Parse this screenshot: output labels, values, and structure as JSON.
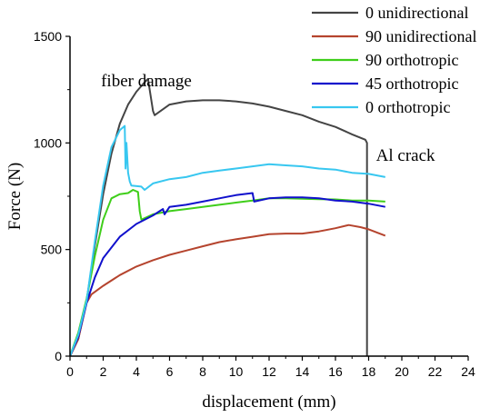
{
  "chart_data": {
    "type": "line",
    "xlabel": "displacement (mm)",
    "ylabel": "Force (N)",
    "xlim": [
      0,
      24
    ],
    "ylim": [
      0,
      1500
    ],
    "x_ticks": [
      0,
      2,
      4,
      6,
      8,
      10,
      12,
      14,
      16,
      18,
      20,
      22,
      24
    ],
    "y_ticks": [
      0,
      500,
      1000,
      1500
    ],
    "grid": false,
    "legend_position": "top-right",
    "annotations": [
      {
        "text": "fiber damage",
        "x": 4.6,
        "y": 1300
      },
      {
        "text": "Al crack",
        "x": 17.9,
        "y": 1010
      }
    ],
    "series": [
      {
        "name": "0 unidirectional",
        "color": "#444444",
        "points": [
          [
            0,
            0
          ],
          [
            0.5,
            80
          ],
          [
            1,
            260
          ],
          [
            1.5,
            520
          ],
          [
            2,
            760
          ],
          [
            2.5,
            950
          ],
          [
            3,
            1090
          ],
          [
            3.5,
            1180
          ],
          [
            4,
            1240
          ],
          [
            4.5,
            1285
          ],
          [
            4.7,
            1300
          ],
          [
            5,
            1150
          ],
          [
            5.1,
            1130
          ],
          [
            6,
            1180
          ],
          [
            7,
            1195
          ],
          [
            8,
            1200
          ],
          [
            9,
            1200
          ],
          [
            10,
            1195
          ],
          [
            11,
            1185
          ],
          [
            12,
            1170
          ],
          [
            13,
            1150
          ],
          [
            14,
            1130
          ],
          [
            15,
            1100
          ],
          [
            16,
            1075
          ],
          [
            17,
            1040
          ],
          [
            17.8,
            1015
          ],
          [
            17.9,
            1000
          ],
          [
            17.9,
            0
          ]
        ]
      },
      {
        "name": "90 unidirectional",
        "color": "#b5442e",
        "points": [
          [
            0,
            0
          ],
          [
            0.5,
            80
          ],
          [
            1,
            250
          ],
          [
            1.3,
            290
          ],
          [
            2,
            330
          ],
          [
            3,
            380
          ],
          [
            4,
            420
          ],
          [
            5,
            450
          ],
          [
            6,
            475
          ],
          [
            7,
            495
          ],
          [
            8,
            515
          ],
          [
            9,
            535
          ],
          [
            10,
            548
          ],
          [
            11,
            560
          ],
          [
            12,
            572
          ],
          [
            13,
            575
          ],
          [
            14,
            575
          ],
          [
            15,
            585
          ],
          [
            16,
            600
          ],
          [
            16.8,
            615
          ],
          [
            17.5,
            605
          ],
          [
            18,
            595
          ],
          [
            18.5,
            580
          ],
          [
            19,
            565
          ]
        ]
      },
      {
        "name": "90 orthotropic",
        "color": "#3fce1a",
        "points": [
          [
            0,
            0
          ],
          [
            0.5,
            110
          ],
          [
            1,
            270
          ],
          [
            1.5,
            470
          ],
          [
            2,
            640
          ],
          [
            2.5,
            740
          ],
          [
            3,
            760
          ],
          [
            3.5,
            765
          ],
          [
            3.8,
            780
          ],
          [
            4.1,
            770
          ],
          [
            4.2,
            680
          ],
          [
            4.3,
            640
          ],
          [
            5,
            665
          ],
          [
            6,
            680
          ],
          [
            7,
            690
          ],
          [
            8,
            700
          ],
          [
            9,
            710
          ],
          [
            10,
            720
          ],
          [
            11,
            730
          ],
          [
            12,
            740
          ],
          [
            13,
            740
          ],
          [
            14,
            738
          ],
          [
            15,
            736
          ],
          [
            16,
            735
          ],
          [
            17,
            730
          ],
          [
            18,
            730
          ],
          [
            19,
            725
          ]
        ]
      },
      {
        "name": "45 orthotropic",
        "color": "#1010cc",
        "points": [
          [
            0,
            0
          ],
          [
            0.5,
            90
          ],
          [
            1,
            250
          ],
          [
            1.5,
            370
          ],
          [
            2,
            460
          ],
          [
            3,
            560
          ],
          [
            4,
            620
          ],
          [
            5,
            660
          ],
          [
            5.6,
            690
          ],
          [
            5.7,
            665
          ],
          [
            6,
            700
          ],
          [
            7,
            710
          ],
          [
            8,
            725
          ],
          [
            9,
            740
          ],
          [
            10,
            755
          ],
          [
            11,
            765
          ],
          [
            11.1,
            725
          ],
          [
            12,
            740
          ],
          [
            13,
            745
          ],
          [
            14,
            745
          ],
          [
            15,
            740
          ],
          [
            16,
            730
          ],
          [
            17,
            725
          ],
          [
            18,
            715
          ],
          [
            19,
            700
          ]
        ]
      },
      {
        "name": "0 orthotropic",
        "color": "#38c7f0",
        "points": [
          [
            0,
            0
          ],
          [
            0.5,
            100
          ],
          [
            1,
            260
          ],
          [
            1.5,
            540
          ],
          [
            2,
            800
          ],
          [
            2.5,
            980
          ],
          [
            3,
            1060
          ],
          [
            3.3,
            1080
          ],
          [
            3.35,
            880
          ],
          [
            3.4,
            1000
          ],
          [
            3.5,
            860
          ],
          [
            3.6,
            820
          ],
          [
            3.7,
            800
          ],
          [
            4.3,
            795
          ],
          [
            4.5,
            780
          ],
          [
            5,
            810
          ],
          [
            6,
            830
          ],
          [
            7,
            840
          ],
          [
            8,
            860
          ],
          [
            9,
            870
          ],
          [
            10,
            880
          ],
          [
            11,
            890
          ],
          [
            12,
            900
          ],
          [
            13,
            895
          ],
          [
            14,
            890
          ],
          [
            15,
            880
          ],
          [
            16,
            875
          ],
          [
            17,
            860
          ],
          [
            18,
            855
          ],
          [
            19,
            840
          ]
        ]
      }
    ]
  }
}
